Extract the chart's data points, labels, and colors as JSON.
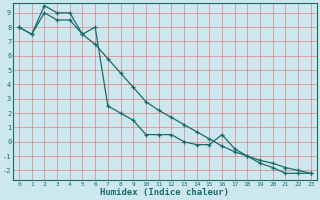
{
  "xlabel": "Humidex (Indice chaleur)",
  "background_color": "#cce8ee",
  "grid_color_major": "#e08080",
  "grid_color_minor": "#d0c0c0",
  "line_color": "#1a6b6b",
  "xlim": [
    -0.5,
    23.5
  ],
  "ylim": [
    -2.7,
    9.7
  ],
  "xticks": [
    0,
    1,
    2,
    3,
    4,
    5,
    6,
    7,
    8,
    9,
    10,
    11,
    12,
    13,
    14,
    15,
    16,
    17,
    18,
    19,
    20,
    21,
    22,
    23
  ],
  "yticks": [
    -2,
    -1,
    0,
    1,
    2,
    3,
    4,
    5,
    6,
    7,
    8,
    9
  ],
  "line1_x": [
    0,
    1,
    2,
    3,
    4,
    5,
    6,
    7,
    8,
    9,
    10,
    11,
    12,
    13,
    14,
    15,
    16,
    17,
    18,
    19,
    20,
    21,
    22,
    23
  ],
  "line1_y": [
    8.0,
    7.5,
    9.5,
    9.0,
    9.0,
    7.5,
    8.0,
    2.5,
    2.0,
    1.5,
    0.5,
    0.5,
    0.5,
    0.0,
    -0.2,
    -0.2,
    0.5,
    -0.5,
    -1.0,
    -1.5,
    -1.8,
    -2.2,
    -2.2,
    -2.2
  ],
  "line2_x": [
    0,
    1,
    2,
    3,
    4,
    5,
    6,
    7,
    8,
    9,
    10,
    11,
    12,
    13,
    14,
    15,
    16,
    17,
    18,
    19,
    20,
    21,
    22,
    23
  ],
  "line2_y": [
    8.0,
    7.5,
    9.0,
    8.5,
    8.5,
    7.5,
    6.8,
    5.8,
    4.8,
    3.8,
    2.8,
    2.2,
    1.7,
    1.2,
    0.7,
    0.2,
    -0.3,
    -0.7,
    -1.0,
    -1.3,
    -1.5,
    -1.8,
    -2.0,
    -2.2
  ]
}
